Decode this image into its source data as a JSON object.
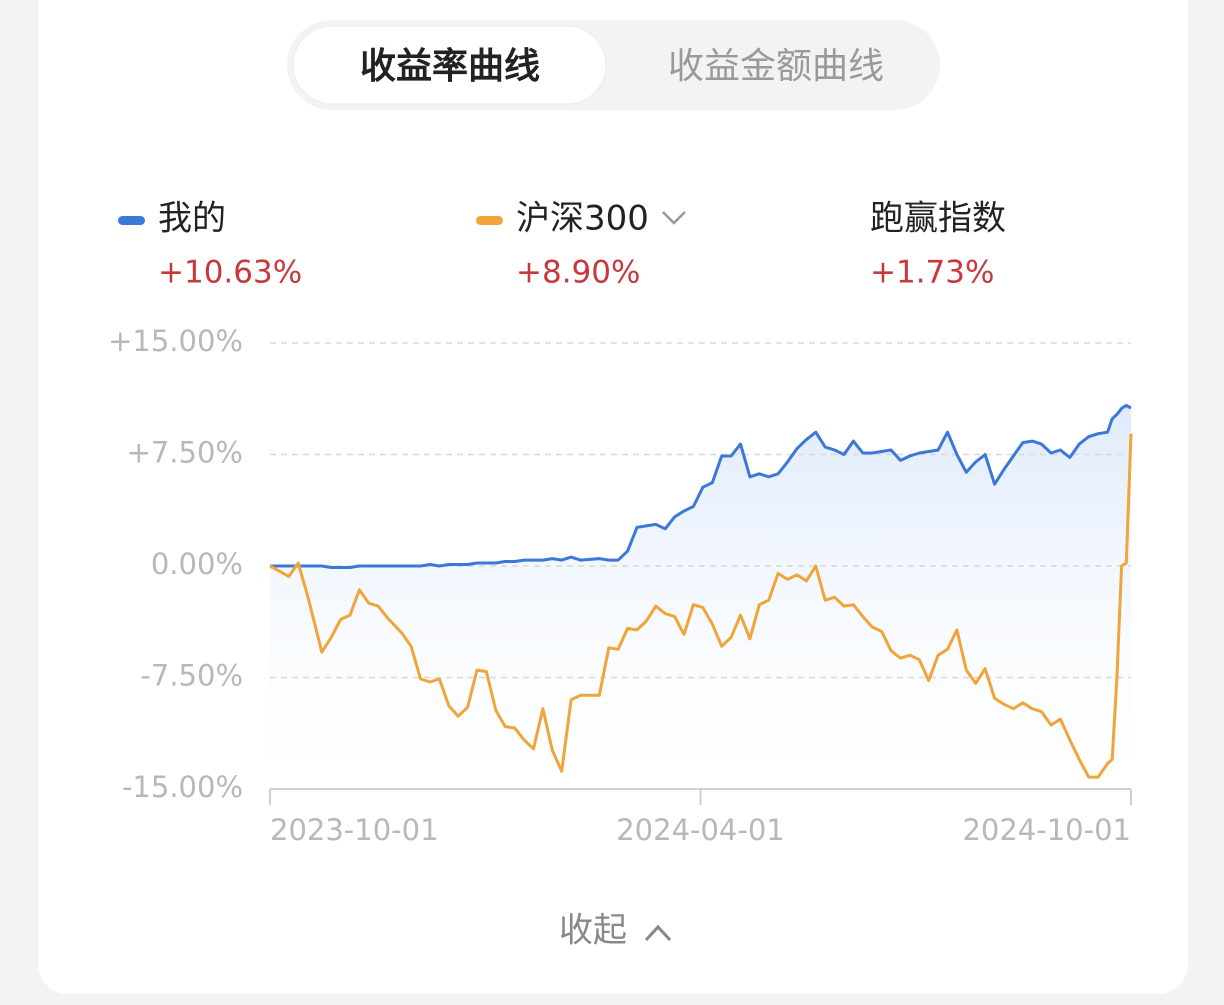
{
  "tabs": {
    "items": [
      "收益率曲线",
      "收益金额曲线"
    ],
    "active": 0
  },
  "collapse": {
    "label": "收起"
  },
  "chart_data": {
    "type": "line",
    "x": [
      "2023-10-01",
      "2023-10-09",
      "2023-10-13",
      "2023-10-17",
      "2023-10-21",
      "2023-10-23",
      "2023-10-27",
      "2023-10-31",
      "2023-11-04",
      "2023-11-08",
      "2023-11-12",
      "2023-11-16",
      "2023-11-20",
      "2023-11-26",
      "2023-11-30",
      "2023-12-04",
      "2023-12-08",
      "2023-12-12",
      "2023-12-16",
      "2023-12-20",
      "2023-12-24",
      "2023-12-28",
      "2024-01-01",
      "2024-01-05",
      "2024-01-09",
      "2024-01-13",
      "2024-01-17",
      "2024-01-21",
      "2024-01-25",
      "2024-01-29",
      "2024-02-02",
      "2024-02-06",
      "2024-02-10",
      "2024-02-18",
      "2024-02-22",
      "2024-02-26",
      "2024-03-01",
      "2024-03-05",
      "2024-03-09",
      "2024-03-13",
      "2024-03-17",
      "2024-03-21",
      "2024-03-25",
      "2024-03-29",
      "2024-04-02",
      "2024-04-06",
      "2024-04-10",
      "2024-04-14",
      "2024-04-18",
      "2024-04-22",
      "2024-04-26",
      "2024-04-30",
      "2024-05-04",
      "2024-05-08",
      "2024-05-12",
      "2024-05-16",
      "2024-05-20",
      "2024-05-24",
      "2024-05-28",
      "2024-06-01",
      "2024-06-05",
      "2024-06-09",
      "2024-06-13",
      "2024-06-17",
      "2024-06-21",
      "2024-06-25",
      "2024-06-29",
      "2024-07-03",
      "2024-07-07",
      "2024-07-11",
      "2024-07-15",
      "2024-07-19",
      "2024-07-23",
      "2024-07-27",
      "2024-07-31",
      "2024-08-04",
      "2024-08-08",
      "2024-08-12",
      "2024-08-16",
      "2024-08-20",
      "2024-08-24",
      "2024-08-28",
      "2024-09-01",
      "2024-09-05",
      "2024-09-09",
      "2024-09-13",
      "2024-09-17",
      "2024-09-21",
      "2024-09-23",
      "2024-09-25",
      "2024-09-27",
      "2024-09-29",
      "2024-10-01"
    ],
    "series": [
      {
        "name": "我的",
        "color": "#3b78d8",
        "summary": "+10.63%",
        "values": [
          0,
          0,
          0,
          0,
          0,
          0,
          -0.1,
          -0.1,
          -0.1,
          0,
          0,
          0,
          0,
          0,
          0,
          0,
          0.1,
          0,
          0.1,
          0.1,
          0.1,
          0.2,
          0.2,
          0.2,
          0.3,
          0.3,
          0.4,
          0.4,
          0.4,
          0.5,
          0.4,
          0.6,
          0.4,
          0.5,
          0.4,
          0.4,
          1.0,
          2.6,
          2.7,
          2.8,
          2.5,
          3.3,
          3.7,
          4.0,
          5.3,
          5.6,
          7.4,
          7.4,
          8.2,
          6.0,
          6.2,
          6.0,
          6.2,
          7.0,
          7.9,
          8.5,
          9.0,
          8.0,
          7.8,
          7.5,
          8.4,
          7.6,
          7.6,
          7.7,
          7.8,
          7.1,
          7.4,
          7.6,
          7.7,
          7.8,
          9.0,
          7.5,
          6.3,
          7.0,
          7.5,
          5.5,
          6.5,
          7.4,
          8.3,
          8.4,
          8.2,
          7.6,
          7.8,
          7.3,
          8.2,
          8.7,
          8.9,
          9.0,
          9.9,
          10.2,
          10.6,
          10.8,
          10.63
        ]
      },
      {
        "name": "沪深300",
        "color": "#f0a43a",
        "summary": "+8.90%",
        "values": [
          0,
          -0.7,
          0.2,
          -2,
          -4.5,
          -5.8,
          -4.8,
          -3.6,
          -3.3,
          -1.6,
          -2.5,
          -2.7,
          -3.5,
          -4.5,
          -5.4,
          -7.6,
          -7.8,
          -7.6,
          -9.4,
          -10.1,
          -9.5,
          -7,
          -7.1,
          -9.7,
          -10.8,
          -10.9,
          -11.7,
          -12.3,
          -9.6,
          -12.4,
          -13.8,
          -9,
          -8.7,
          -8.7,
          -5.5,
          -5.6,
          -4.2,
          -4.3,
          -3.7,
          -2.7,
          -3.2,
          -3.4,
          -4.6,
          -2.6,
          -2.8,
          -3.9,
          -5.4,
          -4.8,
          -3.3,
          -4.9,
          -2.6,
          -2.3,
          -0.5,
          -0.9,
          -0.6,
          -1.0,
          0,
          -2.3,
          -2.1,
          -2.7,
          -2.6,
          -3.4,
          -4.1,
          -4.4,
          -5.7,
          -6.2,
          -6.0,
          -6.3,
          -7.7,
          -6.0,
          -5.6,
          -4.3,
          -7.0,
          -7.9,
          -6.9,
          -8.9,
          -9.3,
          -9.6,
          -9.2,
          -9.6,
          -9.8,
          -10.7,
          -10.3,
          -11.7,
          -13.0,
          -14.2,
          -14.2,
          -13.3,
          -13.0,
          -7.5,
          0,
          0.2,
          8.9
        ]
      }
    ],
    "excess": {
      "label": "跑赢指数",
      "value": "+1.73%"
    },
    "xlim": [
      "2023-10-01",
      "2024-10-01"
    ],
    "xticks": [
      "2023-10-01",
      "2024-04-01",
      "2024-10-01"
    ],
    "ylim": [
      -15,
      15
    ],
    "yticks": [
      {
        "value": -15,
        "label": "-15.00%"
      },
      {
        "value": -7.5,
        "label": "-7.50%"
      },
      {
        "value": 0,
        "label": "0.00%"
      },
      {
        "value": 7.5,
        "label": "+7.50%"
      },
      {
        "value": 15,
        "label": "+15.00%"
      }
    ],
    "grid": true,
    "area_under": 0
  }
}
